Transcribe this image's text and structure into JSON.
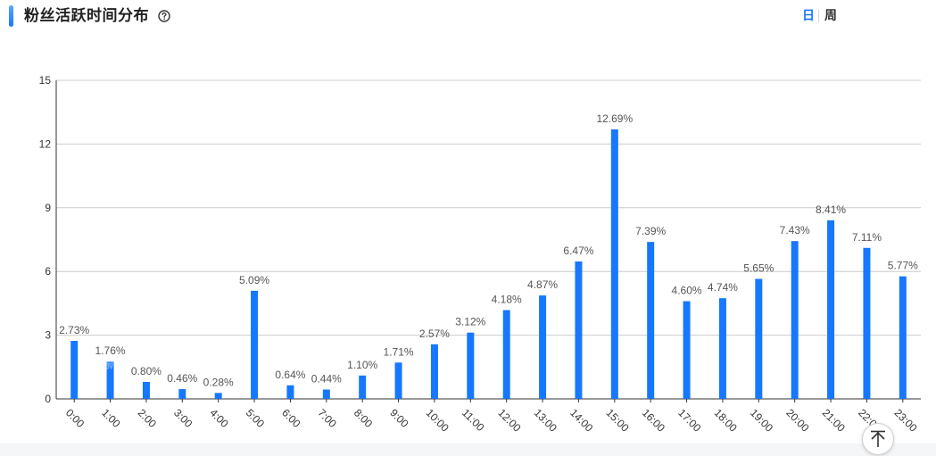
{
  "header": {
    "title": "粉丝活跃时间分布",
    "help_icon": "question-circle-icon",
    "tabs": [
      {
        "label": "日",
        "active": true
      },
      {
        "label": "周",
        "active": false
      }
    ]
  },
  "watermark": {
    "text": "新榜"
  },
  "scroll_top_icon": "arrow-to-top-icon",
  "colors": {
    "bar": "#1677ff",
    "accent": "#1677ff",
    "grid": "#cccccc"
  },
  "chart_data": {
    "type": "bar",
    "categories": [
      "0:00",
      "1:00",
      "2:00",
      "3:00",
      "4:00",
      "5:00",
      "6:00",
      "7:00",
      "8:00",
      "9:00",
      "10:00",
      "11:00",
      "12:00",
      "13:00",
      "14:00",
      "15:00",
      "16:00",
      "17:00",
      "18:00",
      "19:00",
      "20:00",
      "21:00",
      "22:00",
      "23:00"
    ],
    "values": [
      2.73,
      1.76,
      0.8,
      0.46,
      0.28,
      5.09,
      0.64,
      0.44,
      1.1,
      1.71,
      2.57,
      3.12,
      4.18,
      4.87,
      6.47,
      12.69,
      7.39,
      4.6,
      4.74,
      5.65,
      7.43,
      8.41,
      7.11,
      5.77
    ],
    "value_labels": [
      "2.73%",
      "1.76%",
      "0.80%",
      "0.46%",
      "0.28%",
      "5.09%",
      "0.64%",
      "0.44%",
      "1.10%",
      "1.71%",
      "2.57%",
      "3.12%",
      "4.18%",
      "4.87%",
      "6.47%",
      "12.69%",
      "7.39%",
      "4.60%",
      "4.74%",
      "5.65%",
      "7.43%",
      "8.41%",
      "7.11%",
      "5.77%"
    ],
    "y_ticks": [
      0,
      3,
      6,
      9,
      12,
      15
    ],
    "ylim": [
      0,
      15
    ],
    "grid": true,
    "title": "",
    "xlabel": "",
    "ylabel": ""
  }
}
